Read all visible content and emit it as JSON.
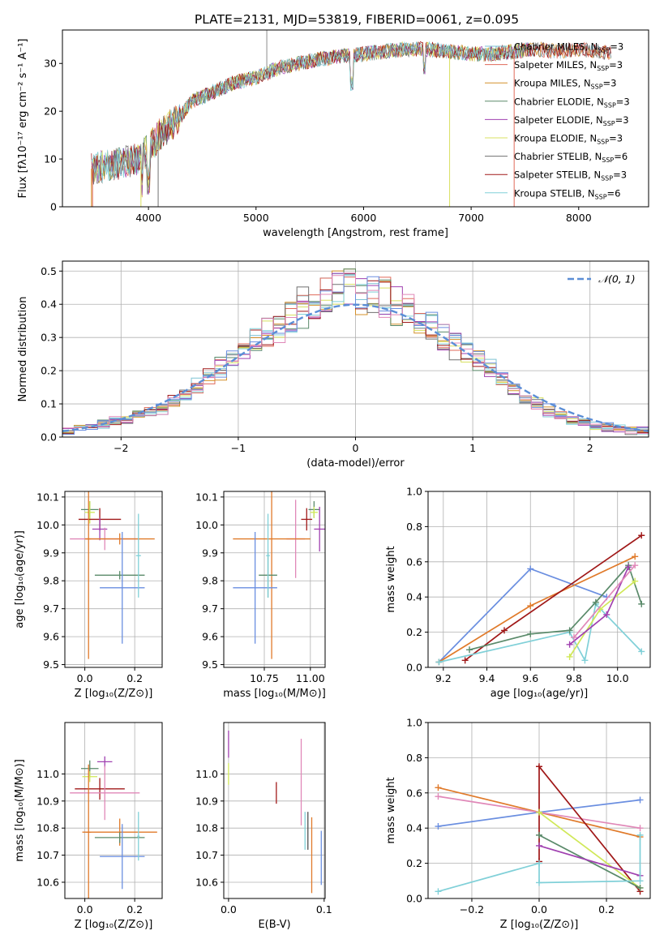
{
  "figure": {
    "title": "PLATE=2131, MJD=53819, FIBERID=0061, z=0.095"
  },
  "colors": {
    "Chabrier MILES": "#7ec3d4",
    "Salpeter MILES": "#e06a5a",
    "Kroupa MILES": "#d4902a",
    "Chabrier ELODIE": "#5a8a6a",
    "Salpeter ELODIE": "#a040b0",
    "Kroupa ELODIE": "#d8e060",
    "Chabrier STELIB": "#707070",
    "Salpeter STELIB": "#a01818",
    "Kroupa STELIB": "#80d0d8",
    "blue": "#6a8ee0",
    "orange": "#e07a2a",
    "green": "#5a8a6a",
    "purple": "#a040b0",
    "pink": "#e088b8",
    "lime": "#d0e858",
    "teal": "#80d0d8",
    "darkred": "#a01818",
    "gray": "#505050"
  },
  "chart_data": [
    {
      "id": "spectrum",
      "type": "line",
      "xlabel": "wavelength [Angstrom, rest frame]",
      "ylabel": "Flux [fλ10⁻¹⁷ erg cm⁻² s⁻¹ A⁻¹]",
      "xlim": [
        3200,
        8650
      ],
      "ylim": [
        0,
        37
      ],
      "xticks": [
        4000,
        5000,
        6000,
        7000,
        8000
      ],
      "yticks": [
        0,
        10,
        20,
        30
      ],
      "grid": false,
      "legend_position": "top-right",
      "legend": [
        "Chabrier MILES, N_SSP=3",
        "Salpeter MILES, N_SSP=3",
        "Kroupa MILES, N_SSP=3",
        "Chabrier ELODIE, N_SSP=3",
        "Salpeter ELODIE, N_SSP=3",
        "Kroupa ELODIE, N_SSP=3",
        "Chabrier STELIB, N_SSP=6",
        "Salpeter STELIB, N_SSP=3",
        "Kroupa STELIB, N_SSP=6"
      ],
      "continuum": {
        "x": [
          3500,
          3700,
          3900,
          4000,
          4100,
          4300,
          4400,
          4600,
          4800,
          5000,
          5200,
          5400,
          5600,
          5800,
          6000,
          6200,
          6400,
          6600,
          6800,
          7000,
          7200,
          7400,
          7600,
          7800,
          8000,
          8200,
          8300
        ],
        "y": [
          8,
          9,
          10,
          12,
          15,
          19,
          22,
          24,
          26,
          27,
          29,
          30,
          31,
          31.5,
          32,
          32.5,
          33,
          33,
          32.5,
          32,
          32,
          32.5,
          33,
          32.5,
          33,
          32.5,
          32
        ]
      }
    },
    {
      "id": "residuals",
      "type": "step",
      "xlabel": "(data-model)/error",
      "ylabel": "Normed distribution",
      "xlim": [
        -2.5,
        2.5
      ],
      "ylim": [
        0,
        0.53
      ],
      "xticks": [
        -2,
        -1,
        0,
        1,
        2
      ],
      "yticks": [
        0.0,
        0.1,
        0.2,
        0.3,
        0.4,
        0.5
      ],
      "grid": true,
      "legend_position": "top-right",
      "legend": [
        "𝒩(0, 1)"
      ],
      "bins": [
        -2.5,
        -2.4,
        -2.3,
        -2.2,
        -2.1,
        -2.0,
        -1.9,
        -1.8,
        -1.7,
        -1.6,
        -1.5,
        -1.4,
        -1.3,
        -1.2,
        -1.1,
        -1.0,
        -0.9,
        -0.8,
        -0.7,
        -0.6,
        -0.5,
        -0.4,
        -0.3,
        -0.2,
        -0.1,
        0.0,
        0.1,
        0.2,
        0.3,
        0.4,
        0.5,
        0.6,
        0.7,
        0.8,
        0.9,
        1.0,
        1.1,
        1.2,
        1.3,
        1.4,
        1.5,
        1.6,
        1.7,
        1.8,
        1.9,
        2.0,
        2.1,
        2.2,
        2.3,
        2.4,
        2.5
      ],
      "hist_base": [
        0.02,
        0.025,
        0.03,
        0.04,
        0.05,
        0.055,
        0.07,
        0.08,
        0.09,
        0.11,
        0.13,
        0.16,
        0.19,
        0.21,
        0.24,
        0.26,
        0.29,
        0.31,
        0.33,
        0.36,
        0.39,
        0.41,
        0.43,
        0.44,
        0.45,
        0.44,
        0.43,
        0.42,
        0.4,
        0.38,
        0.35,
        0.33,
        0.3,
        0.28,
        0.26,
        0.23,
        0.21,
        0.18,
        0.15,
        0.12,
        0.1,
        0.08,
        0.065,
        0.05,
        0.045,
        0.035,
        0.03,
        0.025,
        0.02,
        0.02
      ],
      "normal_curve": "N(0,1)"
    },
    {
      "id": "age_vs_Z",
      "type": "errorbar",
      "xlabel": "Z [log₁₀(Z/Z⊙)]",
      "ylabel": "age  [log₁₀(age/yr)]",
      "xlim": [
        -0.08,
        0.31
      ],
      "ylim": [
        9.49,
        10.12
      ],
      "xticks": [
        0.0,
        0.2
      ],
      "yticks": [
        9.5,
        9.6,
        9.7,
        9.8,
        9.9,
        10.0,
        10.1
      ],
      "grid": true,
      "points": [
        {
          "x": 0.02,
          "y": 10.055,
          "xe": 0.035,
          "ye": 0.03,
          "color": "green"
        },
        {
          "x": 0.02,
          "y": 10.045,
          "xe": 0.02,
          "ye": 0.04,
          "color": "lime"
        },
        {
          "x": 0.06,
          "y": 10.02,
          "xe": 0.085,
          "ye": 0.04,
          "color": "darkred"
        },
        {
          "x": 0.06,
          "y": 9.985,
          "xe": 0.03,
          "ye": 0.04,
          "color": "purple"
        },
        {
          "x": 0.08,
          "y": 9.95,
          "xe": 0.14,
          "ye": 0.04,
          "color": "pink"
        },
        {
          "x": 0.14,
          "y": 9.95,
          "xe": 0.14,
          "ye": 0.02,
          "color": "orange"
        },
        {
          "x": 0.015,
          "y": 9.95,
          "xe": 0.01,
          "ye": 0.43,
          "color": "orange"
        },
        {
          "x": 0.14,
          "y": 9.82,
          "xe": 0.1,
          "ye": 0.015,
          "color": "green"
        },
        {
          "x": 0.15,
          "y": 9.775,
          "xe": 0.09,
          "ye": 0.2,
          "color": "blue"
        },
        {
          "x": 0.215,
          "y": 9.89,
          "xe": 0.01,
          "ye": 0.15,
          "color": "teal"
        }
      ]
    },
    {
      "id": "age_vs_mass",
      "type": "errorbar",
      "xlabel": "mass [log₁₀(M/M⊙)]",
      "ylabel": "",
      "xlim": [
        10.53,
        11.08
      ],
      "ylim": [
        9.49,
        10.12
      ],
      "xticks": [
        10.75,
        11.0
      ],
      "yticks": [
        9.5,
        9.6,
        9.7,
        9.8,
        9.9,
        10.0,
        10.1
      ],
      "grid": true,
      "points": [
        {
          "x": 11.02,
          "y": 10.055,
          "xe": 0.03,
          "ye": 0.03,
          "color": "green"
        },
        {
          "x": 11.02,
          "y": 10.045,
          "xe": 0.02,
          "ye": 0.02,
          "color": "lime"
        },
        {
          "x": 10.98,
          "y": 10.02,
          "xe": 0.03,
          "ye": 0.04,
          "color": "darkred"
        },
        {
          "x": 11.05,
          "y": 9.985,
          "xe": 0.03,
          "ye": 0.08,
          "color": "purple"
        },
        {
          "x": 10.92,
          "y": 9.95,
          "xe": 0.05,
          "ye": 0.14,
          "color": "pink"
        },
        {
          "x": 10.79,
          "y": 9.95,
          "xe": 0.21,
          "ye": 0.43,
          "color": "orange"
        },
        {
          "x": 10.77,
          "y": 9.82,
          "xe": 0.05,
          "ye": 0.08,
          "color": "green"
        },
        {
          "x": 10.7,
          "y": 9.775,
          "xe": 0.12,
          "ye": 0.2,
          "color": "blue"
        },
        {
          "x": 10.77,
          "y": 9.89,
          "xe": 0.01,
          "ye": 0.15,
          "color": "teal"
        }
      ]
    },
    {
      "id": "massweight_vs_age",
      "type": "line",
      "xlabel": "age  [log₁₀(age/yr)]",
      "ylabel": "mass weight",
      "xlim": [
        9.13,
        10.15
      ],
      "ylim": [
        0,
        1
      ],
      "xticks": [
        9.2,
        9.4,
        9.6,
        9.8,
        10.0
      ],
      "yticks": [
        0.0,
        0.2,
        0.4,
        0.6,
        0.8,
        1.0
      ],
      "grid": true,
      "series": [
        {
          "color": "blue",
          "x": [
            9.18,
            9.6,
            9.95
          ],
          "y": [
            0.03,
            0.56,
            0.4
          ]
        },
        {
          "color": "orange",
          "x": [
            9.18,
            9.6,
            10.08
          ],
          "y": [
            0.03,
            0.35,
            0.63
          ]
        },
        {
          "color": "darkred",
          "x": [
            9.3,
            9.48,
            10.11
          ],
          "y": [
            0.04,
            0.21,
            0.75
          ]
        },
        {
          "color": "teal",
          "x": [
            9.18,
            9.78,
            9.85,
            9.9,
            10.11
          ],
          "y": [
            0.03,
            0.2,
            0.04,
            0.36,
            0.09
          ]
        },
        {
          "color": "green",
          "x": [
            9.32,
            9.6,
            9.78,
            9.9,
            10.05,
            10.11
          ],
          "y": [
            0.1,
            0.19,
            0.21,
            0.37,
            0.58,
            0.36
          ]
        },
        {
          "color": "lime",
          "x": [
            9.78,
            9.92,
            10.08
          ],
          "y": [
            0.06,
            0.33,
            0.49
          ]
        },
        {
          "color": "purple",
          "x": [
            9.78,
            9.95,
            10.05
          ],
          "y": [
            0.13,
            0.3,
            0.57
          ]
        },
        {
          "color": "pink",
          "x": [
            9.8,
            10.08
          ],
          "y": [
            0.17,
            0.58
          ]
        }
      ]
    },
    {
      "id": "mass_vs_Z",
      "type": "errorbar",
      "xlabel": "Z [log₁₀(Z/Z⊙)]",
      "ylabel": "mass [log₁₀(M/M⊙)]",
      "xlim": [
        -0.08,
        0.31
      ],
      "ylim": [
        10.54,
        11.19
      ],
      "xticks": [
        0.0,
        0.2
      ],
      "yticks": [
        10.6,
        10.7,
        10.8,
        10.9,
        11.0
      ],
      "grid": true,
      "points": [
        {
          "x": 0.08,
          "y": 11.045,
          "xe": 0.03,
          "ye": 0.02,
          "color": "purple"
        },
        {
          "x": 0.02,
          "y": 11.02,
          "xe": 0.035,
          "ye": 0.03,
          "color": "green"
        },
        {
          "x": 0.02,
          "y": 10.99,
          "xe": 0.03,
          "ye": 0.02,
          "color": "lime"
        },
        {
          "x": 0.06,
          "y": 10.945,
          "xe": 0.1,
          "ye": 0.04,
          "color": "darkred"
        },
        {
          "x": 0.08,
          "y": 10.93,
          "xe": 0.14,
          "ye": 0.1,
          "color": "pink"
        },
        {
          "x": 0.14,
          "y": 10.785,
          "xe": 0.15,
          "ye": 0.05,
          "color": "orange"
        },
        {
          "x": 0.015,
          "y": 10.785,
          "xe": 0.01,
          "ye": 0.25,
          "color": "orange"
        },
        {
          "x": 0.14,
          "y": 10.765,
          "xe": 0.1,
          "ye": 0.02,
          "color": "green"
        },
        {
          "x": 0.15,
          "y": 10.695,
          "xe": 0.09,
          "ye": 0.12,
          "color": "blue"
        },
        {
          "x": 0.215,
          "y": 10.77,
          "xe": 0.005,
          "ye": 0.09,
          "color": "teal"
        }
      ]
    },
    {
      "id": "mass_vs_EBV",
      "type": "errorbar",
      "xlabel": "E(B-V)",
      "ylabel": "",
      "xlim": [
        -0.005,
        0.101
      ],
      "ylim": [
        10.54,
        11.19
      ],
      "xticks": [
        0.0,
        0.1
      ],
      "yticks": [
        10.6,
        10.7,
        10.8,
        10.9,
        11.0
      ],
      "grid": true,
      "points": [
        {
          "x": 0.0,
          "y": 11.11,
          "xe": 0,
          "ye": 0.05,
          "color": "purple"
        },
        {
          "x": 0.0,
          "y": 11.0,
          "xe": 0,
          "ye": 0.04,
          "color": "lime"
        },
        {
          "x": 0.05,
          "y": 10.93,
          "xe": 0,
          "ye": 0.04,
          "color": "darkred"
        },
        {
          "x": 0.076,
          "y": 10.97,
          "xe": 0,
          "ye": 0.16,
          "color": "pink"
        },
        {
          "x": 0.08,
          "y": 10.79,
          "xe": 0,
          "ye": 0.07,
          "color": "teal"
        },
        {
          "x": 0.083,
          "y": 10.79,
          "xe": 0,
          "ye": 0.07,
          "color": "gray"
        },
        {
          "x": 0.087,
          "y": 10.7,
          "xe": 0,
          "ye": 0.14,
          "color": "orange"
        },
        {
          "x": 0.097,
          "y": 10.69,
          "xe": 0,
          "ye": 0.1,
          "color": "blue"
        }
      ]
    },
    {
      "id": "massweight_vs_Z",
      "type": "line",
      "xlabel": "Z [log₁₀(Z/Z⊙)]",
      "ylabel": "mass weight",
      "xlim": [
        -0.33,
        0.33
      ],
      "ylim": [
        0,
        1
      ],
      "xticks": [
        -0.2,
        0.0,
        0.2
      ],
      "yticks": [
        0.0,
        0.2,
        0.4,
        0.6,
        0.8,
        1.0
      ],
      "grid": true,
      "series": [
        {
          "color": "blue",
          "x": [
            -0.3,
            0.0,
            0.3
          ],
          "y": [
            0.41,
            0.49,
            0.56
          ]
        },
        {
          "color": "orange",
          "x": [
            -0.3,
            0.0,
            0.3
          ],
          "y": [
            0.63,
            0.49,
            0.35
          ]
        },
        {
          "color": "pink",
          "x": [
            -0.3,
            0.0,
            0.3
          ],
          "y": [
            0.58,
            0.49,
            0.4
          ]
        },
        {
          "color": "darkred",
          "x": [
            0.0,
            0.0,
            0.3
          ],
          "y": [
            0.21,
            0.75,
            0.04
          ]
        },
        {
          "color": "lime",
          "x": [
            0.0,
            0.3
          ],
          "y": [
            0.49,
            0.06
          ]
        },
        {
          "color": "green",
          "x": [
            0.0,
            0.3
          ],
          "y": [
            0.36,
            0.06
          ]
        },
        {
          "color": "purple",
          "x": [
            0.0,
            0.3
          ],
          "y": [
            0.3,
            0.13
          ]
        },
        {
          "color": "teal",
          "x": [
            -0.3,
            0.0,
            0.0,
            0.3,
            0.3
          ],
          "y": [
            0.04,
            0.2,
            0.09,
            0.1,
            0.36
          ]
        }
      ]
    }
  ]
}
